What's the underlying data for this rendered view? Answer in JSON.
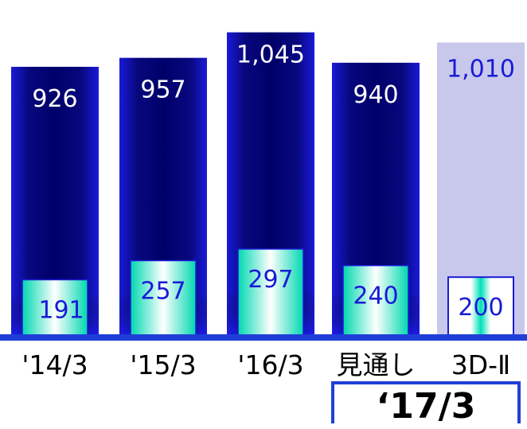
{
  "chart_data": {
    "type": "bar",
    "categories": [
      "'14/3",
      "'15/3",
      "'16/3",
      "見通し",
      "3D-Ⅱ"
    ],
    "series": [
      {
        "values": [
          926,
          957,
          1045,
          940,
          1010
        ],
        "labels": [
          "926",
          "957",
          "1,045",
          "940",
          "1,010"
        ]
      },
      {
        "values": [
          191,
          257,
          297,
          240,
          200
        ],
        "labels": [
          "191",
          "257",
          "297",
          "240",
          "200"
        ]
      }
    ],
    "group_label": "‘17/3",
    "title": "",
    "xlabel": "",
    "ylabel": "",
    "ylim": [
      0,
      1100
    ],
    "grid": false,
    "legend": "none",
    "colors": {
      "outer": "#0a0a8c",
      "outer_plan": "#c8c8ec",
      "inner": "#00e0b8",
      "label": "#1a1ad6",
      "baseline": "#1f3fd6"
    }
  }
}
